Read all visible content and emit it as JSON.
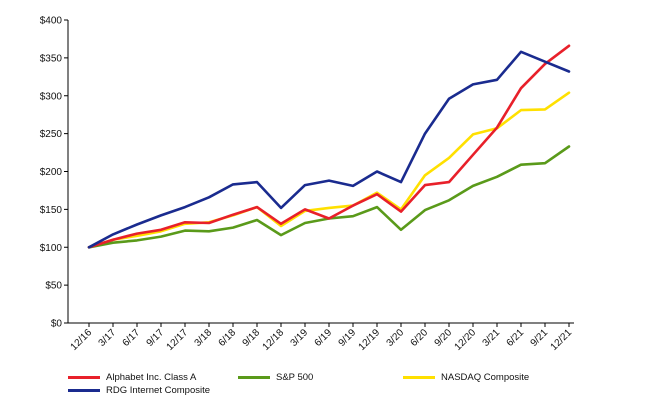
{
  "chart_data": {
    "type": "line",
    "title": "",
    "xlabel": "",
    "ylabel": "",
    "ylim": [
      0,
      400
    ],
    "yticks": [
      0,
      50,
      100,
      150,
      200,
      250,
      300,
      350,
      400
    ],
    "ytick_labels": [
      "$0",
      "$50",
      "$100",
      "$150",
      "$200",
      "$250",
      "$300",
      "$350",
      "$400"
    ],
    "x": [
      "12/16",
      "3/17",
      "6/17",
      "9/17",
      "12/17",
      "3/18",
      "6/18",
      "9/18",
      "12/18",
      "3/19",
      "6/19",
      "9/19",
      "12/19",
      "3/20",
      "6/20",
      "9/20",
      "12/20",
      "3/21",
      "6/21",
      "9/21",
      "12/21"
    ],
    "grid": false,
    "legend_position": "bottom",
    "series": [
      {
        "name": "Alphabet Inc. Class A",
        "color": "#e8202a",
        "values": [
          100,
          110,
          118,
          123,
          133,
          132,
          143,
          153,
          131,
          150,
          138,
          155,
          170,
          147,
          182,
          186,
          222,
          258,
          310,
          342,
          366
        ]
      },
      {
        "name": "S&P 500",
        "color": "#5a9a1a",
        "values": [
          100,
          106,
          109,
          114,
          122,
          121,
          126,
          136,
          116,
          132,
          138,
          141,
          153,
          123,
          149,
          162,
          181,
          193,
          209,
          211,
          233
        ]
      },
      {
        "name": "NASDAQ Composite",
        "color": "#ffe000",
        "values": [
          100,
          110,
          115,
          121,
          131,
          133,
          142,
          153,
          128,
          148,
          152,
          155,
          172,
          150,
          195,
          218,
          249,
          257,
          281,
          282,
          304
        ]
      },
      {
        "name": "RDG Internet Composite",
        "color": "#1a2b8f",
        "values": [
          100,
          117,
          130,
          142,
          153,
          166,
          183,
          186,
          152,
          182,
          188,
          181,
          200,
          186,
          250,
          296,
          315,
          321,
          358,
          345,
          332
        ]
      }
    ]
  }
}
